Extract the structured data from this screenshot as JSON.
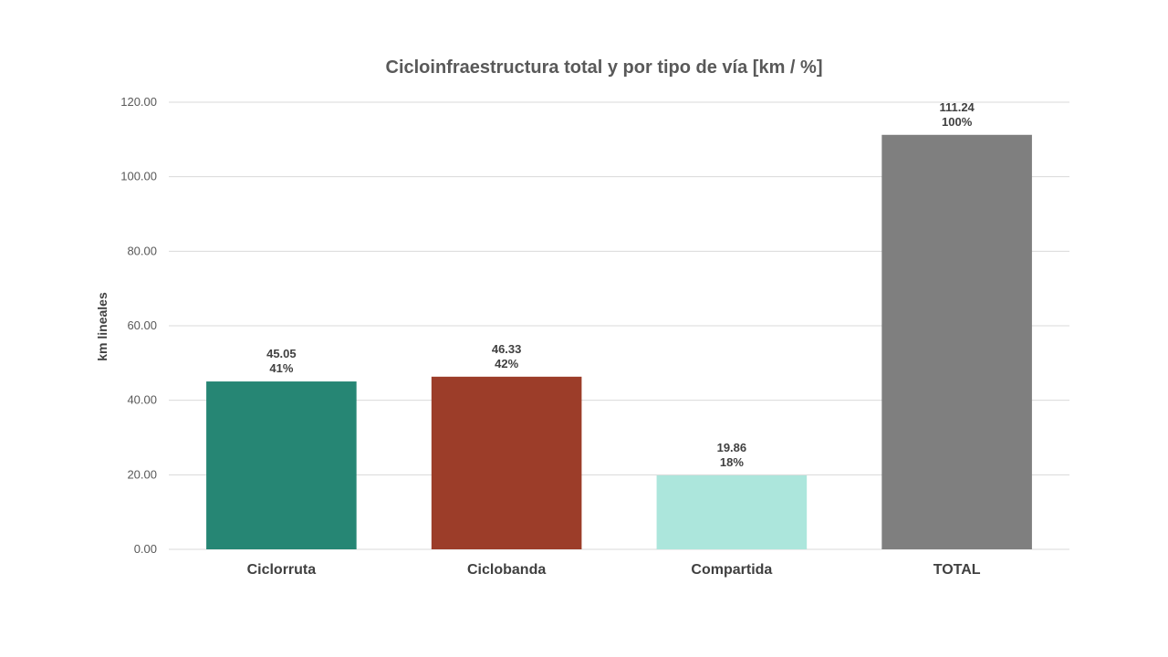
{
  "chart_data": {
    "type": "bar",
    "title": "Cicloinfraestructura total y por tipo de vía  [km / %]",
    "xlabel": "",
    "ylabel": "km lineales",
    "ylim": [
      0,
      120
    ],
    "yticks": [
      "0.00",
      "20.00",
      "40.00",
      "60.00",
      "80.00",
      "100.00",
      "120.00"
    ],
    "grid": true,
    "legend": "none",
    "categories": [
      "Ciclorruta",
      "Ciclobanda",
      "Compartida",
      "TOTAL"
    ],
    "values": [
      45.05,
      46.33,
      19.86,
      111.24
    ],
    "value_labels": [
      "45.05",
      "46.33",
      "19.86",
      "111.24"
    ],
    "percent_labels": [
      "41%",
      "42%",
      "18%",
      "100%"
    ],
    "colors": [
      "#268674",
      "#9c3d29",
      "#ace6dc",
      "#7f7f7f"
    ]
  }
}
